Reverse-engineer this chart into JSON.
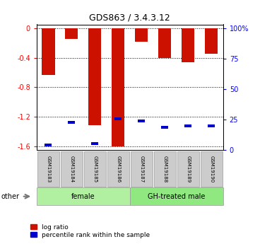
{
  "title": "GDS863 / 3.4.3.12",
  "samples": [
    "GSM19183",
    "GSM19184",
    "GSM19185",
    "GSM19186",
    "GSM19187",
    "GSM19188",
    "GSM19189",
    "GSM19190"
  ],
  "log_ratios": [
    -0.63,
    -0.15,
    -1.31,
    -1.6,
    -0.18,
    -0.4,
    -0.46,
    -0.35
  ],
  "percentile_ranks": [
    4,
    22,
    5,
    25,
    23,
    18,
    19,
    19
  ],
  "groups": [
    {
      "label": "female",
      "start": 0,
      "end": 4,
      "color": "#b0f0a0"
    },
    {
      "label": "GH-treated male",
      "start": 4,
      "end": 8,
      "color": "#90e880"
    }
  ],
  "bar_color": "#cc1100",
  "blue_color": "#0000cc",
  "ylim": [
    -1.65,
    0.05
  ],
  "yticks_left": [
    0,
    -0.4,
    -0.8,
    -1.2,
    -1.6
  ],
  "ytick_labels_left": [
    "–0",
    "–0.4",
    "–0.8",
    "–1.2",
    "–1.6"
  ],
  "ytick_positions_right": [
    0.0,
    -0.4125,
    -0.825,
    -1.2375,
    -1.65
  ],
  "ytick_labels_right": [
    "100%",
    "75",
    "50",
    "25",
    "0"
  ],
  "plot_bg": "#ffffff",
  "label_bg": "#cccccc",
  "bar_width": 0.55,
  "legend_log_ratio": "log ratio",
  "legend_percentile": "percentile rank within the sample",
  "other_label": "other"
}
